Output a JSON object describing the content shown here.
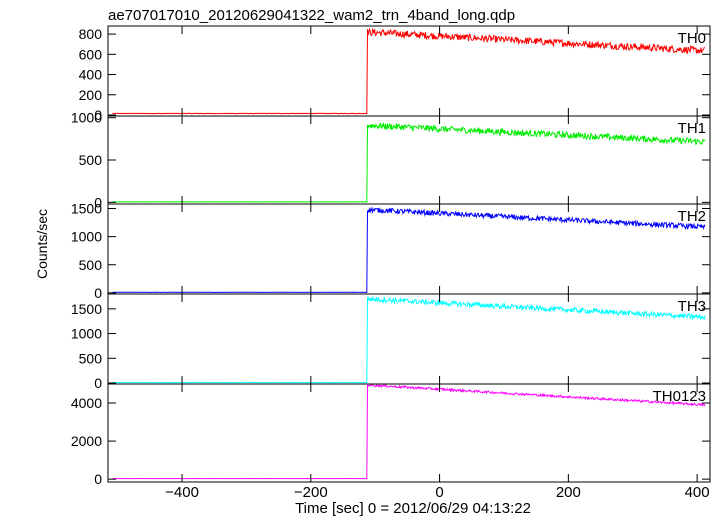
{
  "chart_data": {
    "type": "line",
    "title": "ae707017010_20120629041322_wam2_trn_4band_long.qdp",
    "xlabel": "Time [sec] 0 = 2012/06/29 04:13:22",
    "ylabel": "Counts/sec",
    "xlim": [
      -515,
      420
    ],
    "x_ticks": [
      -400,
      -200,
      0,
      200,
      400
    ],
    "trigger_time": -112,
    "end_time": 412,
    "panels": [
      {
        "name": "TH0",
        "color": "#ff0000",
        "ylim": [
          -10,
          880
        ],
        "y_ticks": [
          0,
          200,
          400,
          600,
          800
        ],
        "pre_level": 15,
        "post_start": 820,
        "post_end": 635,
        "noise": 35
      },
      {
        "name": "TH1",
        "color": "#00ee00",
        "ylim": [
          -20,
          1020
        ],
        "y_ticks": [
          0,
          500,
          1000
        ],
        "pre_level": 5,
        "post_start": 910,
        "post_end": 715,
        "noise": 38
      },
      {
        "name": "TH2",
        "color": "#0000ff",
        "ylim": [
          -20,
          1580
        ],
        "y_ticks": [
          0,
          500,
          1000,
          1500
        ],
        "pre_level": 10,
        "post_start": 1480,
        "post_end": 1170,
        "noise": 45
      },
      {
        "name": "TH3",
        "color": "#00ffff",
        "ylim": [
          -20,
          1800
        ],
        "y_ticks": [
          0,
          500,
          1000,
          1500
        ],
        "pre_level": 10,
        "post_start": 1700,
        "post_end": 1330,
        "noise": 50
      },
      {
        "name": "TH0123",
        "color": "#ff00ff",
        "ylim": [
          -150,
          5000
        ],
        "y_ticks": [
          0,
          2000,
          4000
        ],
        "pre_level": 30,
        "post_start": 4950,
        "post_end": 3900,
        "noise": 60
      }
    ]
  }
}
